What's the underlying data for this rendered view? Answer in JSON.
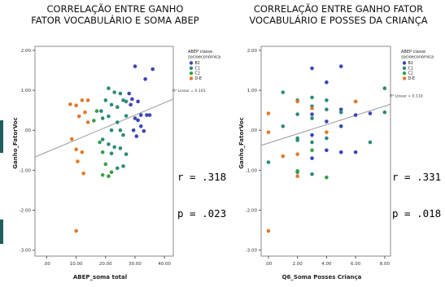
{
  "chart_data": [
    {
      "type": "scatter",
      "title": "CORRELAÇÃO ENTRE GANHO\nFATOR VOCABULÁRIO E SOMA ABEP",
      "title_lines": [
        "CORRELAÇÃO ENTRE GANHO",
        "FATOR VOCABULÁRIO E SOMA ABEP"
      ],
      "xlabel": "ABEP_soma total",
      "ylabel": "Ganho_FatorVoc",
      "xlim": [
        -4,
        43
      ],
      "ylim": [
        -3.15,
        2.1
      ],
      "x_ticks": [
        0,
        10,
        20,
        30,
        40
      ],
      "x_tick_labels": [
        ".00",
        "10.00",
        "20.00",
        "30.00",
        "40.00"
      ],
      "y_ticks": [
        -3,
        -2,
        -1,
        0,
        1,
        2
      ],
      "y_tick_labels": [
        "-3.00",
        "-2.00",
        "-1.00",
        ".00",
        "1.00",
        "2.00"
      ],
      "legend_title": "ABEP classe\nsocioeconômica",
      "legend_title_lines": [
        "ABEP classe",
        "socioeconômica"
      ],
      "legend_position": "top-right",
      "fit_label": "R² Linear = 0.101",
      "fit_line": {
        "x1": -4,
        "y1": -0.67,
        "x2": 43,
        "y2": 0.78
      },
      "series": [
        {
          "name": "B2",
          "color": "#3c46b4",
          "points": [
            [
              30,
              1.6
            ],
            [
              36,
              1.53
            ],
            [
              33.5,
              1.28
            ],
            [
              29,
              0.78
            ],
            [
              31,
              0.72
            ],
            [
              28.5,
              0.64
            ],
            [
              28,
              0.92
            ],
            [
              32,
              0.38
            ],
            [
              34,
              0.38
            ],
            [
              35,
              0.38
            ],
            [
              30,
              0.3
            ],
            [
              31,
              0.25
            ],
            [
              32,
              0.1
            ],
            [
              29.5,
              0.0
            ],
            [
              30.5,
              -0.15
            ],
            [
              33,
              -0.02
            ]
          ]
        },
        {
          "name": "C1",
          "color": "#2e8b7a",
          "points": [
            [
              21,
              1.05
            ],
            [
              23,
              0.95
            ],
            [
              25,
              0.92
            ],
            [
              26,
              0.75
            ],
            [
              27,
              0.72
            ],
            [
              20,
              0.75
            ],
            [
              22,
              0.64
            ],
            [
              24,
              0.58
            ],
            [
              18.5,
              0.48
            ],
            [
              19,
              0.3
            ],
            [
              21,
              0.35
            ],
            [
              27,
              0.36
            ],
            [
              24,
              0.2
            ],
            [
              22,
              0.0
            ],
            [
              25,
              0.0
            ],
            [
              26,
              -0.12
            ],
            [
              19,
              -0.23
            ],
            [
              21,
              -0.35
            ],
            [
              23,
              -0.42
            ],
            [
              25,
              -0.45
            ],
            [
              27,
              -0.6
            ],
            [
              22,
              -0.58
            ],
            [
              26,
              -0.9
            ],
            [
              24,
              -0.95
            ]
          ]
        },
        {
          "name": "C2",
          "color": "#3a9e4a",
          "points": [
            [
              17,
              0.48
            ],
            [
              16,
              0.24
            ],
            [
              18,
              -0.3
            ],
            [
              19,
              -0.55
            ],
            [
              20,
              -0.85
            ],
            [
              22,
              -1.05
            ],
            [
              19,
              -1.12
            ],
            [
              21,
              -1.15
            ]
          ]
        },
        {
          "name": "D-E",
          "color": "#e07a2a",
          "points": [
            [
              8,
              0.65
            ],
            [
              10,
              0.62
            ],
            [
              12,
              0.75
            ],
            [
              14,
              0.75
            ],
            [
              13,
              0.45
            ],
            [
              11,
              0.35
            ],
            [
              14,
              0.2
            ],
            [
              8.5,
              -0.22
            ],
            [
              10,
              -0.48
            ],
            [
              12,
              -0.55
            ],
            [
              10.5,
              -0.78
            ],
            [
              12.5,
              -1.08
            ],
            [
              10,
              -2.52
            ]
          ]
        }
      ],
      "annotation": [
        "r = .318",
        "p = .023"
      ]
    },
    {
      "type": "scatter",
      "title": "CORRELAÇÃO ENTRE GANHO FATOR\nVOCABULÁRIO E POSSES DA CRIANÇA",
      "title_lines": [
        "CORRELAÇÃO ENTRE GANHO FATOR",
        "VOCABULÁRIO E POSSES DA CRIANÇA"
      ],
      "xlabel": "Q6_Soma Posses Criança",
      "ylabel": "Ganho_FatorVoc",
      "xlim": [
        -0.5,
        8.4
      ],
      "ylim": [
        -3.15,
        2.1
      ],
      "x_ticks": [
        0,
        2,
        4,
        6,
        8
      ],
      "x_tick_labels": [
        ".00",
        "2.00",
        "4.00",
        "6.00",
        "8.00"
      ],
      "y_ticks": [
        -3,
        -2,
        -1,
        0,
        1,
        2
      ],
      "y_tick_labels": [
        "-3.00",
        "-2.00",
        "-1.00",
        ".00",
        "1.00",
        "2.00"
      ],
      "legend_title": "ABEP classe\nsocioeconômica",
      "legend_title_lines": [
        "ABEP classe",
        "socioeconômica"
      ],
      "legend_position": "top-right",
      "fit_label": "R² Linear = 0.110",
      "fit_line": {
        "x1": -0.5,
        "y1": -0.38,
        "x2": 8.4,
        "y2": 0.65
      },
      "series": [
        {
          "name": "B2",
          "color": "#3c46b4",
          "points": [
            [
              3,
              1.55
            ],
            [
              5,
              1.6
            ],
            [
              4,
              1.2
            ],
            [
              6,
              0.72
            ],
            [
              5,
              0.52
            ],
            [
              3,
              0.4
            ],
            [
              6,
              0.38
            ],
            [
              4,
              0.22
            ],
            [
              5,
              0.1
            ],
            [
              7,
              0.42
            ],
            [
              3,
              -0.12
            ],
            [
              4,
              -0.5
            ],
            [
              5,
              -0.55
            ],
            [
              6,
              -0.55
            ],
            [
              3,
              -0.7
            ]
          ]
        },
        {
          "name": "C1",
          "color": "#2e8b7a",
          "points": [
            [
              3,
              0.82
            ],
            [
              4,
              0.75
            ],
            [
              3,
              0.6
            ],
            [
              4,
              0.52
            ],
            [
              5,
              0.45
            ],
            [
              2,
              0.75
            ],
            [
              2,
              0.4
            ],
            [
              3,
              0.3
            ],
            [
              1,
              0.95
            ],
            [
              2,
              -0.2
            ],
            [
              3,
              -0.3
            ],
            [
              4,
              -0.2
            ],
            [
              8,
              1.05
            ],
            [
              8,
              0.45
            ],
            [
              7,
              -0.3
            ],
            [
              2,
              -0.25
            ],
            [
              0,
              -0.8
            ],
            [
              1,
              0.1
            ],
            [
              3,
              -1.1
            ],
            [
              2,
              -1.05
            ]
          ]
        },
        {
          "name": "C2",
          "color": "#3a9e4a",
          "points": [
            [
              2,
              -1.02
            ],
            [
              4,
              -1.18
            ],
            [
              3,
              -0.5
            ]
          ]
        },
        {
          "name": "D-E",
          "color": "#e07a2a",
          "points": [
            [
              0,
              0.42
            ],
            [
              0,
              -0.05
            ],
            [
              2,
              0.72
            ],
            [
              1,
              -0.65
            ],
            [
              2,
              -0.6
            ],
            [
              3,
              0.55
            ],
            [
              4,
              -0.05
            ],
            [
              6,
              0.72
            ],
            [
              2,
              -1.15
            ],
            [
              0,
              -2.52
            ]
          ]
        }
      ],
      "annotation": [
        "r = .331",
        "p = .018"
      ]
    }
  ]
}
